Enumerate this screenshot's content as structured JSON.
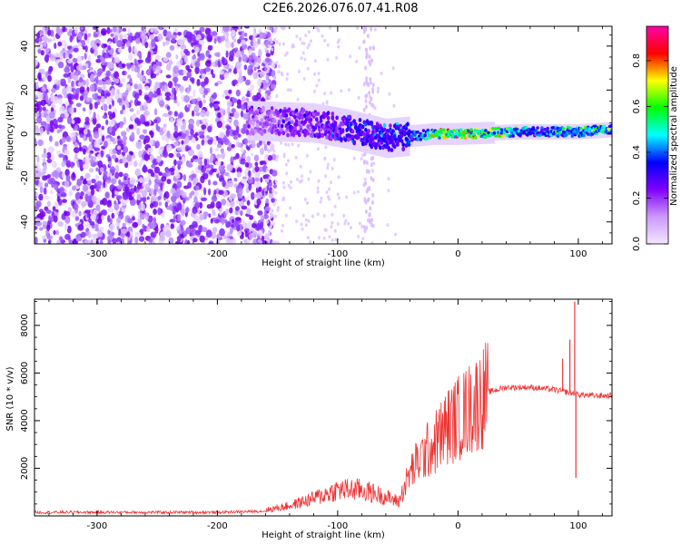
{
  "title": "C2E6.2026.076.07.41.R08",
  "chart_data": [
    {
      "type": "heatmap",
      "xlabel": "Height of straight line (km)",
      "ylabel": "Frequency (Hz)",
      "x_ticks": [
        -300,
        -200,
        -100,
        0,
        100
      ],
      "y_ticks": [
        -40,
        -20,
        0,
        20,
        40
      ],
      "xlim": [
        -352,
        128
      ],
      "ylim": [
        -50,
        49
      ],
      "colorbar": {
        "label": "Normalized spectral amplitude",
        "ticks": [
          "0.0",
          "0.2",
          "0.4",
          "0.6",
          "0.8"
        ],
        "range": [
          0,
          0.95
        ],
        "colors": [
          "#f2e6ff",
          "#cc99ff",
          "#7f00ff",
          "#0000ff",
          "#00ffff",
          "#00ff00",
          "#ffff00",
          "#ff0000",
          "#ff00aa"
        ]
      },
      "ridge_centre_hz": [
        {
          "x": -170,
          "y": 6
        },
        {
          "x": -120,
          "y": 5
        },
        {
          "x": -90,
          "y": 2
        },
        {
          "x": -60,
          "y": -2
        },
        {
          "x": -40,
          "y": -1
        },
        {
          "x": -20,
          "y": 0
        },
        {
          "x": 0,
          "y": 0
        },
        {
          "x": 50,
          "y": 1
        },
        {
          "x": 100,
          "y": 1
        },
        {
          "x": 128,
          "y": 2
        }
      ],
      "peak_amplitude": [
        {
          "x": -170,
          "v": 0.25
        },
        {
          "x": -120,
          "v": 0.35
        },
        {
          "x": -80,
          "v": 0.45
        },
        {
          "x": -40,
          "v": 0.5
        },
        {
          "x": -10,
          "v": 0.9
        },
        {
          "x": 20,
          "v": 0.85
        },
        {
          "x": 60,
          "v": 0.55
        },
        {
          "x": 100,
          "v": 0.6
        },
        {
          "x": 128,
          "v": 0.7
        }
      ]
    },
    {
      "type": "line",
      "xlabel": "Height of straight line (km)",
      "ylabel": "SNR (10 * v/v)",
      "x_ticks": [
        -300,
        -200,
        -100,
        0,
        100
      ],
      "y_ticks": [
        2000,
        4000,
        6000,
        8000
      ],
      "xlim": [
        -352,
        128
      ],
      "ylim": [
        0,
        9100
      ],
      "series_color": "#ee3333",
      "envelope": [
        {
          "x": -352,
          "y": 150
        },
        {
          "x": -200,
          "y": 150
        },
        {
          "x": -160,
          "y": 200
        },
        {
          "x": -140,
          "y": 350
        },
        {
          "x": -120,
          "y": 600
        },
        {
          "x": -100,
          "y": 900
        },
        {
          "x": -80,
          "y": 900
        },
        {
          "x": -60,
          "y": 650
        },
        {
          "x": -50,
          "y": 500
        },
        {
          "x": -40,
          "y": 1800
        },
        {
          "x": -30,
          "y": 2500
        },
        {
          "x": -20,
          "y": 3000
        },
        {
          "x": -10,
          "y": 3700
        },
        {
          "x": 10,
          "y": 4500
        },
        {
          "x": 25,
          "y": 5200
        },
        {
          "x": 40,
          "y": 5400
        },
        {
          "x": 60,
          "y": 5400
        },
        {
          "x": 80,
          "y": 5300
        },
        {
          "x": 90,
          "y": 5200
        },
        {
          "x": 100,
          "y": 5100
        },
        {
          "x": 110,
          "y": 5050
        },
        {
          "x": 128,
          "y": 5050
        }
      ],
      "spikes": [
        {
          "x": 97,
          "y": 9000
        },
        {
          "x": 98,
          "y": 1600
        },
        {
          "x": 93,
          "y": 7400
        },
        {
          "x": 87,
          "y": 6600
        }
      ]
    }
  ]
}
